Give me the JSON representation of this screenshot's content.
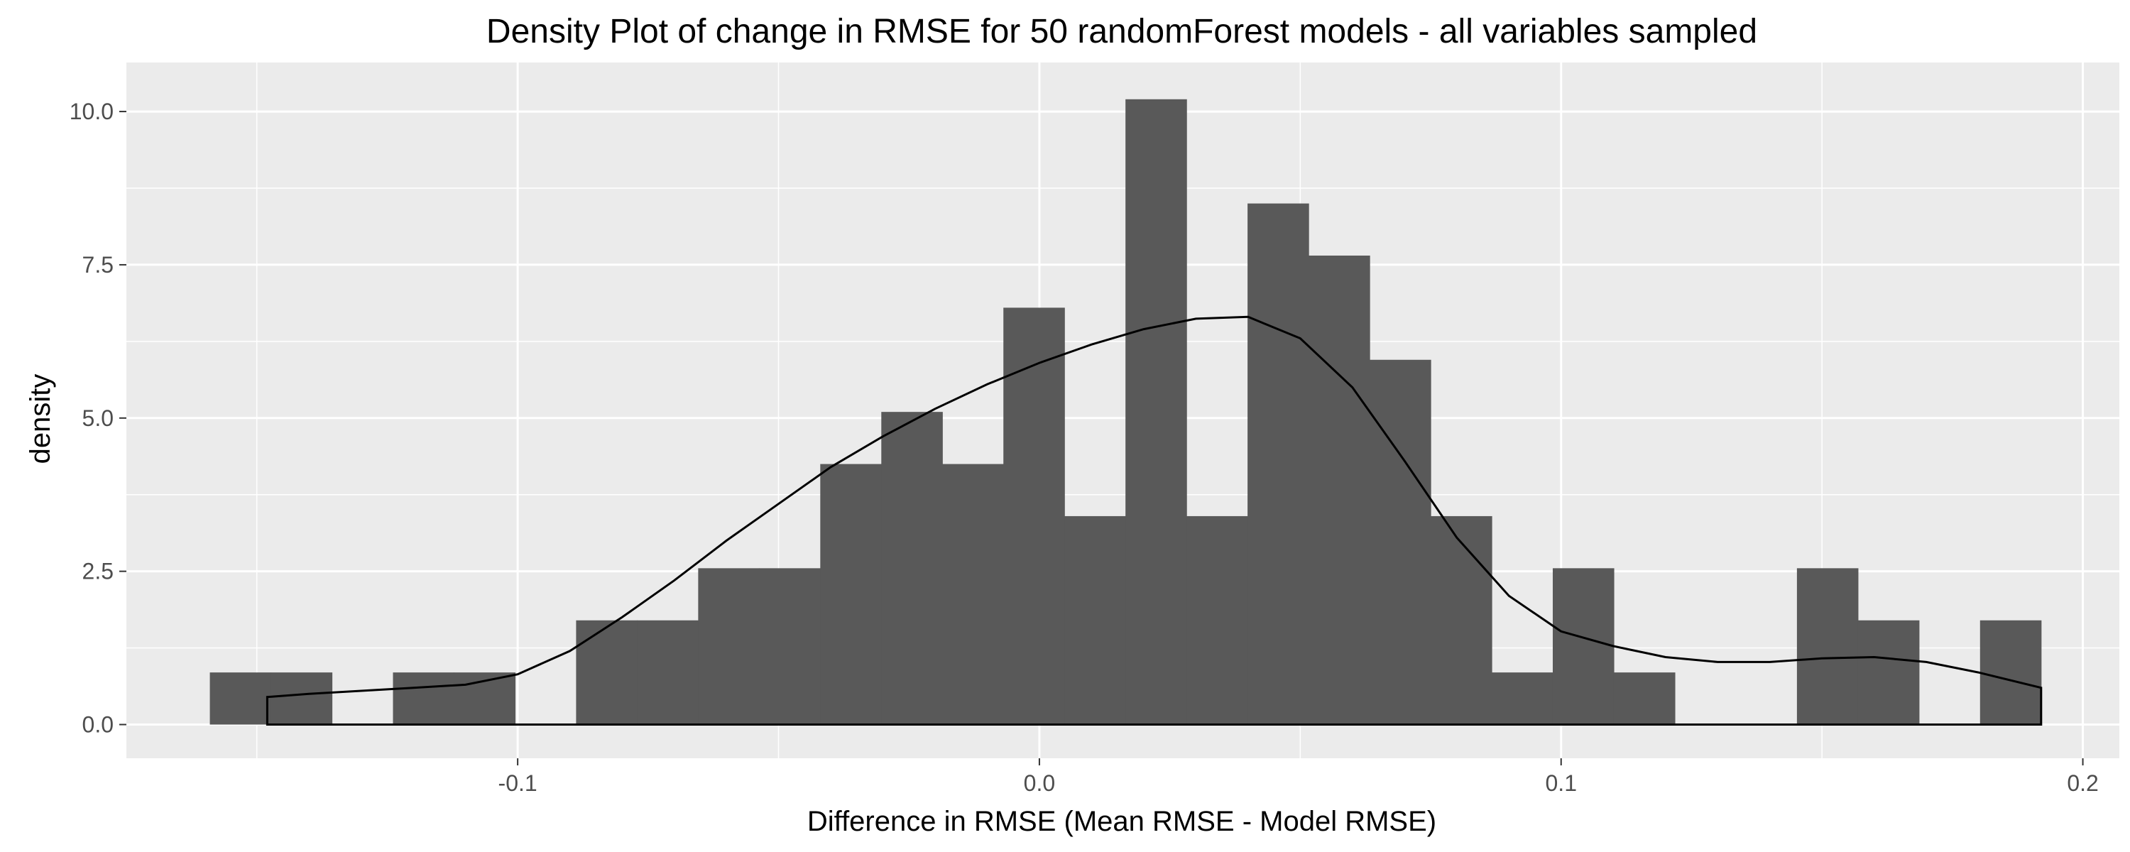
{
  "chart_data": {
    "type": "histogram",
    "title": "Density Plot of change in RMSE for 50 randomForest models - all variables sampled",
    "xlabel": "Difference in RMSE (Mean RMSE - Model RMSE)",
    "ylabel": "density",
    "xlim": [
      -0.175,
      0.207
    ],
    "ylim": [
      -0.55,
      10.8
    ],
    "x_ticks": [
      -0.1,
      0.0,
      0.1,
      0.2
    ],
    "x_tick_labels": [
      "-0.1",
      "0.0",
      "0.1",
      "0.2"
    ],
    "y_ticks": [
      0.0,
      2.5,
      5.0,
      7.5,
      10.0
    ],
    "y_tick_labels": [
      "0.0",
      "2.5",
      "5.0",
      "7.5",
      "10.0"
    ],
    "grid": true,
    "bar_color": "#595959",
    "panel_background": "#ebebeb",
    "grid_color": "#ffffff",
    "density_line_color": "#000000",
    "bins": [
      {
        "x0": -0.159,
        "x1": -0.1473,
        "density": 0.85
      },
      {
        "x0": -0.1473,
        "x1": -0.1356,
        "density": 0.85
      },
      {
        "x0": -0.1356,
        "x1": -0.1239,
        "density": 0.0
      },
      {
        "x0": -0.1239,
        "x1": -0.1122,
        "density": 0.85
      },
      {
        "x0": -0.1122,
        "x1": -0.1005,
        "density": 0.85
      },
      {
        "x0": -0.1005,
        "x1": -0.0888,
        "density": 0.0
      },
      {
        "x0": -0.0888,
        "x1": -0.0771,
        "density": 1.7
      },
      {
        "x0": -0.0771,
        "x1": -0.0654,
        "density": 1.7
      },
      {
        "x0": -0.0654,
        "x1": -0.0537,
        "density": 2.55
      },
      {
        "x0": -0.0537,
        "x1": -0.042,
        "density": 2.55
      },
      {
        "x0": -0.042,
        "x1": -0.0303,
        "density": 4.25
      },
      {
        "x0": -0.0303,
        "x1": -0.0186,
        "density": 5.1
      },
      {
        "x0": -0.0186,
        "x1": -0.0069,
        "density": 4.25
      },
      {
        "x0": -0.0069,
        "x1": 0.0048,
        "density": 6.8
      },
      {
        "x0": 0.0048,
        "x1": 0.0165,
        "density": 3.4
      },
      {
        "x0": 0.0165,
        "x1": 0.0282,
        "density": 10.2
      },
      {
        "x0": 0.0282,
        "x1": 0.0399,
        "density": 3.4
      },
      {
        "x0": 0.0399,
        "x1": 0.0516,
        "density": 8.5
      },
      {
        "x0": 0.0516,
        "x1": 0.0633,
        "density": 7.65
      },
      {
        "x0": 0.0633,
        "x1": 0.075,
        "density": 5.95
      },
      {
        "x0": 0.075,
        "x1": 0.0867,
        "density": 3.4
      },
      {
        "x0": 0.0867,
        "x1": 0.0984,
        "density": 0.85
      },
      {
        "x0": 0.0984,
        "x1": 0.1101,
        "density": 2.55
      },
      {
        "x0": 0.1101,
        "x1": 0.1218,
        "density": 0.85
      },
      {
        "x0": 0.1218,
        "x1": 0.1335,
        "density": 0.0
      },
      {
        "x0": 0.1335,
        "x1": 0.1452,
        "density": 0.0
      },
      {
        "x0": 0.1452,
        "x1": 0.1569,
        "density": 2.55
      },
      {
        "x0": 0.1569,
        "x1": 0.1686,
        "density": 1.7
      },
      {
        "x0": 0.1686,
        "x1": 0.1803,
        "density": 0.0
      },
      {
        "x0": 0.1803,
        "x1": 0.192,
        "density": 1.7
      }
    ],
    "density_curve": {
      "x": [
        -0.148,
        -0.148,
        -0.14,
        -0.13,
        -0.12,
        -0.11,
        -0.1,
        -0.09,
        -0.08,
        -0.07,
        -0.06,
        -0.05,
        -0.04,
        -0.03,
        -0.02,
        -0.01,
        0.0,
        0.01,
        0.02,
        0.03,
        0.04,
        0.05,
        0.06,
        0.07,
        0.08,
        0.09,
        0.1,
        0.11,
        0.12,
        0.13,
        0.14,
        0.15,
        0.16,
        0.17,
        0.18,
        0.192,
        0.192
      ],
      "y": [
        0.0,
        0.45,
        0.5,
        0.55,
        0.6,
        0.65,
        0.82,
        1.2,
        1.75,
        2.35,
        3.0,
        3.6,
        4.2,
        4.7,
        5.15,
        5.55,
        5.9,
        6.2,
        6.45,
        6.62,
        6.65,
        6.3,
        5.5,
        4.3,
        3.05,
        2.1,
        1.52,
        1.28,
        1.1,
        1.02,
        1.02,
        1.08,
        1.1,
        1.02,
        0.85,
        0.6,
        0.0
      ]
    }
  }
}
